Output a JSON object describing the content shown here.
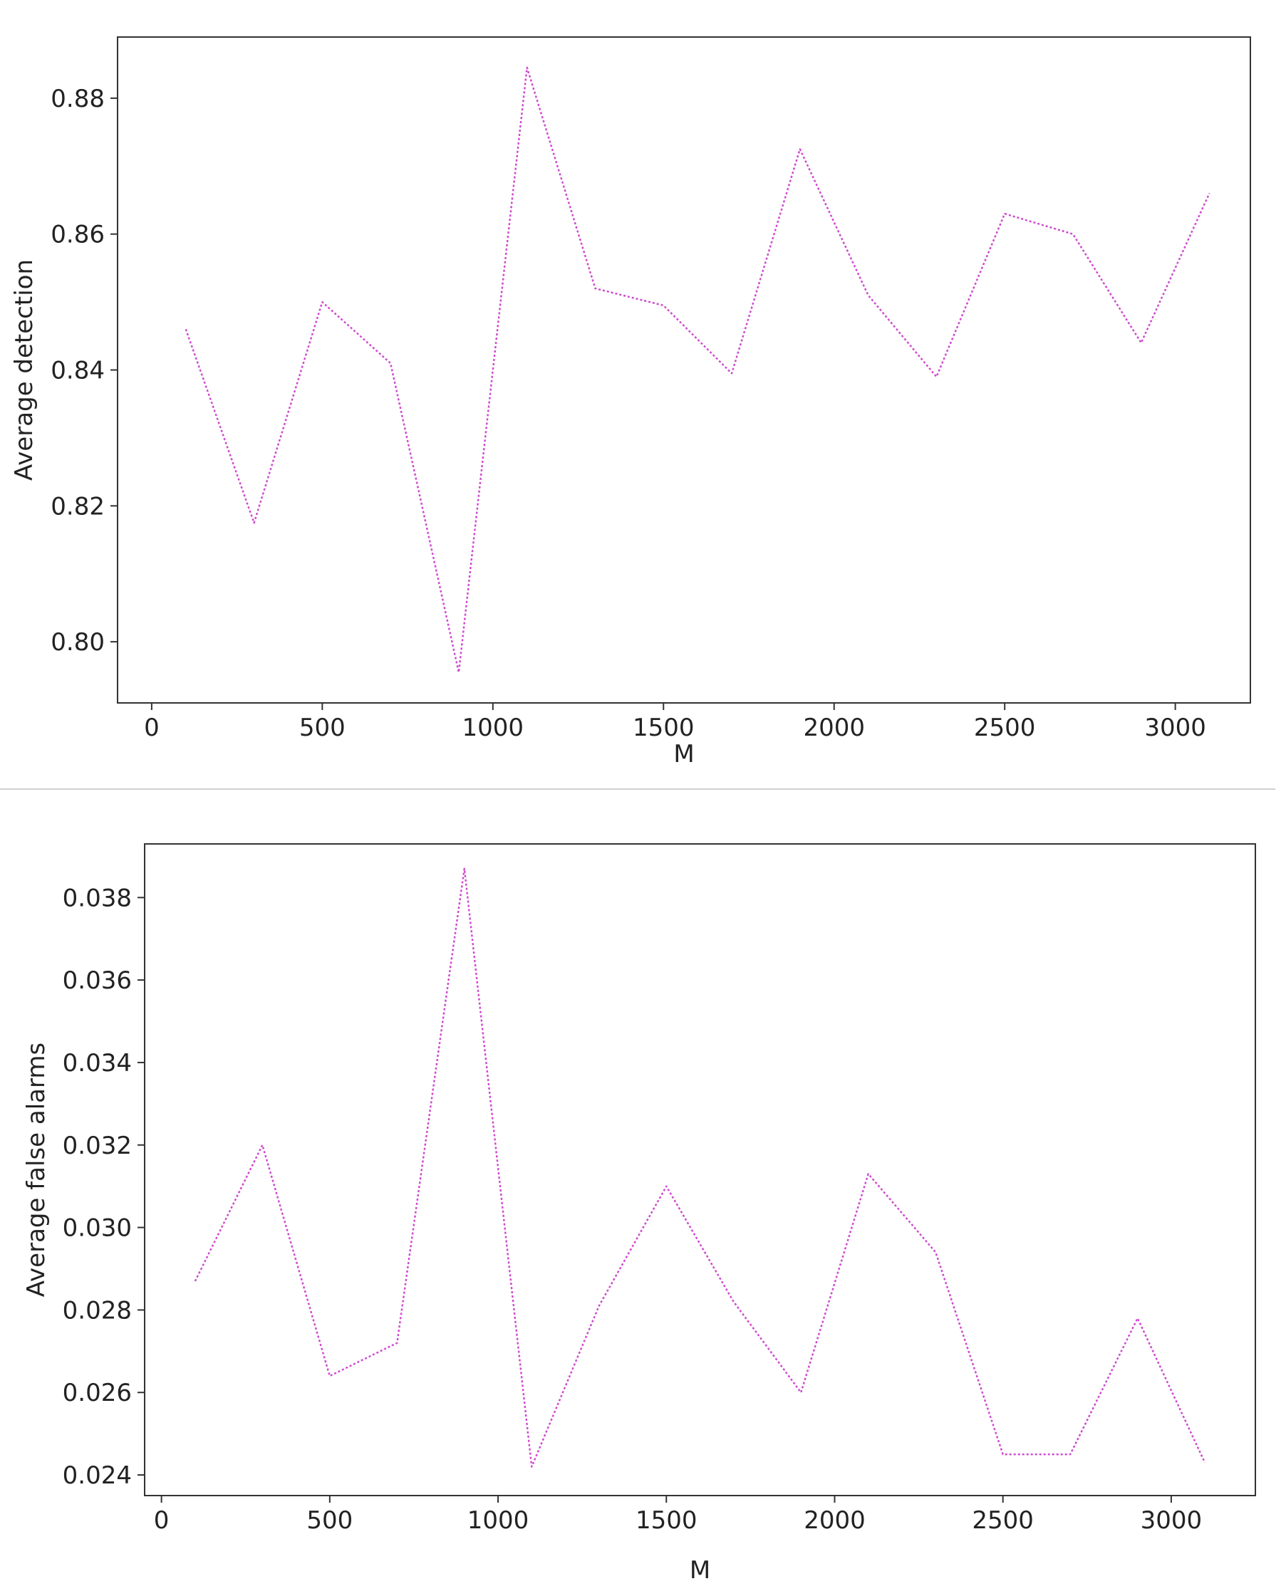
{
  "chart_data": [
    {
      "type": "line",
      "title": "",
      "xlabel": "M",
      "ylabel": "Average detection",
      "xlim": [
        -100,
        3220
      ],
      "ylim": [
        0.791,
        0.889
      ],
      "xticks": [
        0,
        500,
        1000,
        1500,
        2000,
        2500,
        3000
      ],
      "xtick_labels": [
        "0",
        "500",
        "1000",
        "1500",
        "2000",
        "2500",
        "3000"
      ],
      "yticks": [
        0.8,
        0.82,
        0.84,
        0.86,
        0.88
      ],
      "ytick_labels": [
        "0.80",
        "0.82",
        "0.84",
        "0.86",
        "0.88"
      ],
      "grid": false,
      "line_style": "dotted",
      "color": "#d04ad0",
      "series": [
        {
          "x": [
            100,
            300,
            500,
            700,
            900,
            1100,
            1300,
            1500,
            1700,
            1900,
            2100,
            2300,
            2500,
            2700,
            2900,
            3100
          ],
          "values": [
            0.846,
            0.8175,
            0.85,
            0.841,
            0.7955,
            0.8845,
            0.852,
            0.8495,
            0.8395,
            0.8725,
            0.851,
            0.839,
            0.863,
            0.86,
            0.844,
            0.866
          ]
        }
      ]
    },
    {
      "type": "line",
      "title": "",
      "xlabel": "M",
      "ylabel": "Average false alarms",
      "xlim": [
        -50,
        3250
      ],
      "ylim": [
        0.0235,
        0.0393
      ],
      "xticks": [
        0,
        500,
        1000,
        1500,
        2000,
        2500,
        3000
      ],
      "xtick_labels": [
        "0",
        "500",
        "1000",
        "1500",
        "2000",
        "2500",
        "3000"
      ],
      "yticks": [
        0.024,
        0.026,
        0.028,
        0.03,
        0.032,
        0.034,
        0.036,
        0.038
      ],
      "ytick_labels": [
        "0.024",
        "0.026",
        "0.028",
        "0.030",
        "0.032",
        "0.034",
        "0.036",
        "0.038"
      ],
      "grid": false,
      "line_style": "dotted",
      "color": "#d04ad0",
      "series": [
        {
          "x": [
            100,
            300,
            500,
            700,
            900,
            1100,
            1300,
            1500,
            1700,
            1900,
            2100,
            2300,
            2500,
            2700,
            2900,
            3100
          ],
          "values": [
            0.0287,
            0.032,
            0.0264,
            0.0272,
            0.0387,
            0.0242,
            0.0281,
            0.031,
            0.0282,
            0.026,
            0.0313,
            0.0294,
            0.0245,
            0.0245,
            0.0278,
            0.0243
          ]
        }
      ]
    }
  ]
}
